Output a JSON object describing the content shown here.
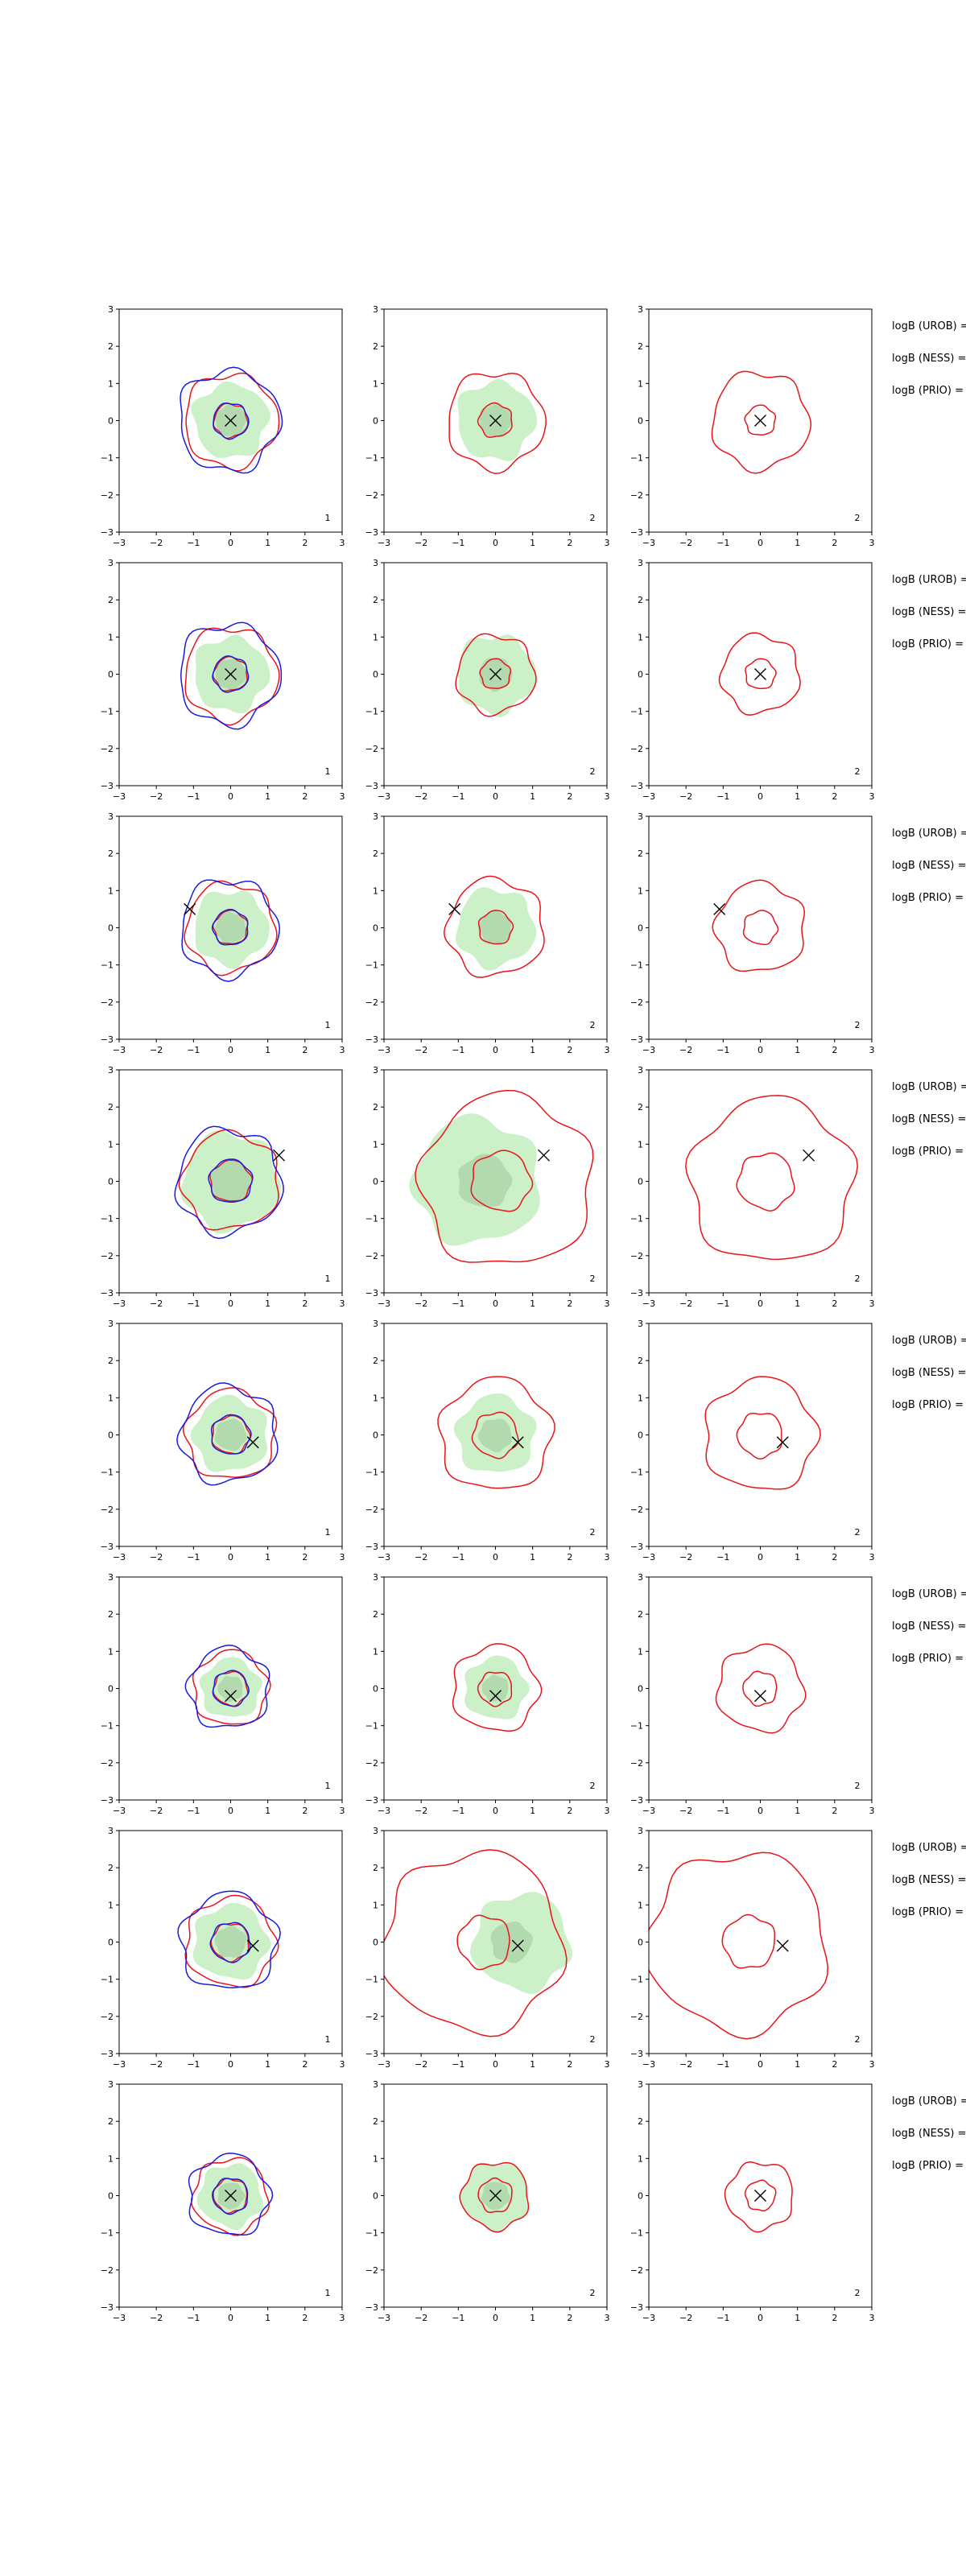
{
  "chart_data": {
    "type": "contour",
    "layout": {
      "rows": 8,
      "columns": 3
    },
    "axes": {
      "xlim": [
        -3,
        3
      ],
      "ylim": [
        -3,
        3
      ],
      "xticks": [
        "−3",
        "−2",
        "−1",
        "0",
        "1",
        "2",
        "3"
      ],
      "yticks": [
        "3",
        "2",
        "1",
        "0",
        "−1",
        "−2",
        "−3"
      ]
    },
    "colors": {
      "filled_region": "#ccf0c8",
      "inner_region": "#b3d9af",
      "contour_red": "#e8141a",
      "contour_blue": "#1a1ae0",
      "marker": "#000000"
    },
    "column_corner_labels": [
      "1",
      "2",
      "2"
    ],
    "side_labels": [
      "logB (UROB) =",
      "logB (NESS) =",
      "logB (PRIO) ="
    ],
    "rows": [
      {
        "marker": [
          0.0,
          0.0
        ],
        "green_radius": [
          1.0,
          1.0,
          0.0
        ],
        "outer_radius": 1.25,
        "inner_radius": 0.45,
        "col2_outer": 1.3,
        "col2_inner": 0.45,
        "col3_outer": 1.3,
        "col3_inner": 0.4
      },
      {
        "marker": [
          0.0,
          0.0
        ],
        "green_radius": [
          1.0,
          1.0,
          0.0
        ],
        "outer_radius": 1.25,
        "inner_radius": 0.45,
        "col2_outer": 1.05,
        "col2_inner": 0.4,
        "col3_outer": 1.05,
        "col3_inner": 0.4
      },
      {
        "marker": [
          -1.1,
          0.5
        ],
        "green_radius": [
          1.0,
          1.0,
          0.0
        ],
        "outer_radius": 1.2,
        "inner_radius": 0.45,
        "col2_outer": 1.3,
        "col2_inner": 0.45,
        "col3_outer": 1.2,
        "col3_inner": 0.45
      },
      {
        "marker": [
          1.3,
          0.7
        ],
        "green_radius": [
          1.3,
          1.3,
          0.0
        ],
        "outer_radius": 1.3,
        "inner_radius": 0.55,
        "col2_outer": 2.3,
        "col2_inner": 0.8,
        "col3_outer": 2.2,
        "col3_inner": 0.75
      },
      {
        "marker": [
          0.6,
          -0.2
        ],
        "green_radius": [
          1.0,
          1.0,
          0.0
        ],
        "outer_radius": 1.2,
        "inner_radius": 0.5,
        "col2_outer": 1.5,
        "col2_inner": 0.6,
        "col3_outer": 1.5,
        "col3_inner": 0.6
      },
      {
        "marker": [
          0.0,
          -0.2
        ],
        "green_radius": [
          0.8,
          0.8,
          0.0
        ],
        "outer_radius": 1.0,
        "inner_radius": 0.45,
        "col2_outer": 1.15,
        "col2_inner": 0.45,
        "col3_outer": 1.15,
        "col3_inner": 0.45
      },
      {
        "marker": [
          0.6,
          -0.1
        ],
        "green_radius": [
          1.0,
          1.0,
          0.0
        ],
        "outer_radius": 1.2,
        "inner_radius": 0.5,
        "col2_outer": 2.4,
        "col2_inner": 0.7,
        "col3_outer": 2.4,
        "col3_inner": 0.7
      },
      {
        "marker": [
          0.0,
          0.0
        ],
        "green_radius": [
          0.85,
          0.85,
          0.0
        ],
        "outer_radius": 1.0,
        "inner_radius": 0.45,
        "col2_outer": 0.9,
        "col2_inner": 0.45,
        "col3_outer": 0.9,
        "col3_inner": 0.4
      }
    ]
  }
}
